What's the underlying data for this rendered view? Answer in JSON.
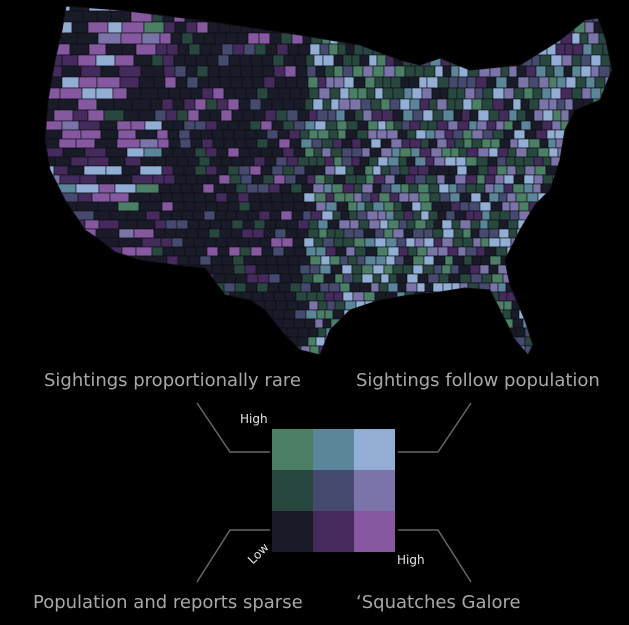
{
  "map": {
    "region": "contiguous-united-states-counties",
    "background_color": "#000000",
    "border_color": "#0d0d12"
  },
  "legend": {
    "corner_labels": {
      "top_left": "Sightings proportionally rare",
      "top_right": "Sightings follow population",
      "bottom_left": "Population and reports sparse",
      "bottom_right": "‘Squatches Galore"
    },
    "axis_labels": {
      "y_high": "High",
      "x_high": "High",
      "origin_low": "Low"
    },
    "grid_colors": [
      [
        "#4b8066",
        "#5b8599",
        "#93aed5"
      ],
      [
        "#28473f",
        "#454a6e",
        "#7a74a8"
      ],
      [
        "#191b29",
        "#452a5c",
        "#8558a0"
      ]
    ]
  }
}
